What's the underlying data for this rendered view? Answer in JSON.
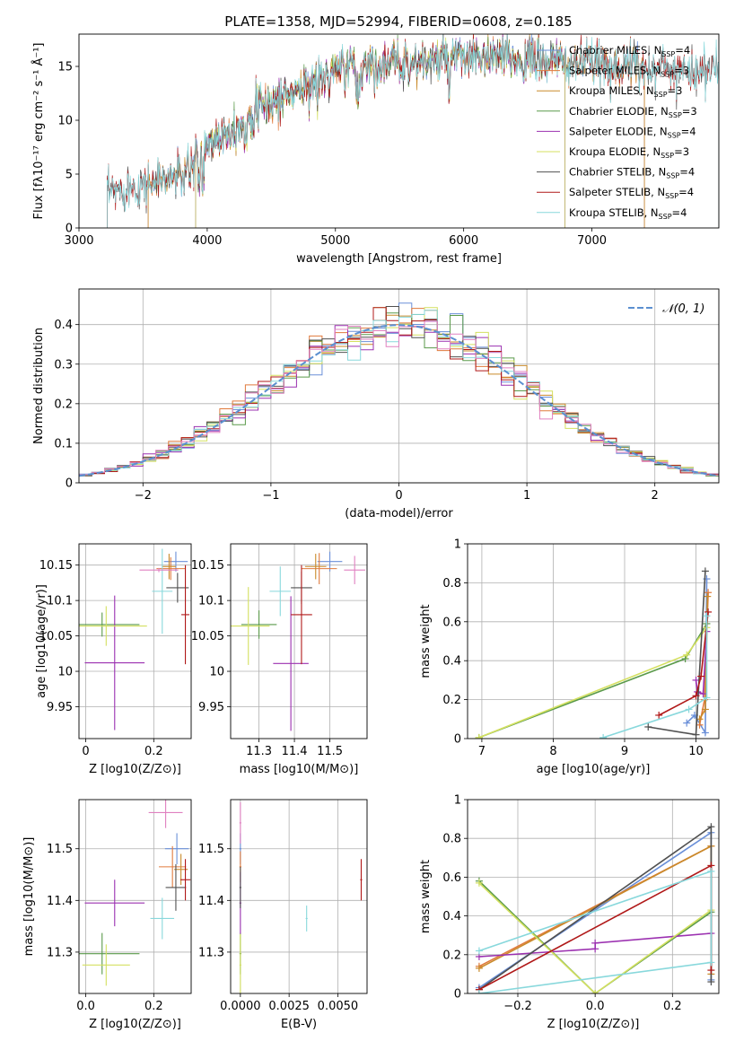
{
  "title": "PLATE=1358, MJD=52994, FIBERID=0608, z=0.185",
  "colors": {
    "Chabrier MILES": "#6a8fd8",
    "Salpeter MILES": "#e07a3c",
    "Kroupa MILES": "#c98a2a",
    "Chabrier ELODIE": "#5a9a4a",
    "Salpeter ELODIE": "#9b30b0",
    "Kroupa ELODIE": "#d4e060",
    "Chabrier STELIB": "#505050",
    "Salpeter STELIB": "#b01818",
    "Kroupa STELIB": "#88d8dc",
    "Pink": "#e080c0",
    "Gauss": "#5b8fd0"
  },
  "chart_data": [
    {
      "id": "spectrum",
      "type": "line",
      "title": "PLATE=1358, MJD=52994, FIBERID=0608, z=0.185",
      "xlabel": "wavelength [Angstrom, rest frame]",
      "ylabel": "Flux [fλ10⁻¹⁷ erg cm⁻² s⁻¹ Å⁻¹]",
      "xlim": [
        3000,
        7990
      ],
      "ylim": [
        0,
        18
      ],
      "xticks": [
        3000,
        4000,
        5000,
        6000,
        7000
      ],
      "yticks": [
        0,
        5,
        10,
        15
      ],
      "legend_position": "top-right",
      "series": [
        {
          "name": "Chabrier MILES, N_SSP=4",
          "model": "Chabrier MILES",
          "xmin": 3540,
          "xmax": 7410
        },
        {
          "name": "Salpeter MILES, N_SSP=3",
          "model": "Salpeter MILES",
          "xmin": 3540,
          "xmax": 7410
        },
        {
          "name": "Kroupa MILES, N_SSP=3",
          "model": "Kroupa MILES",
          "xmin": 3540,
          "xmax": 7410
        },
        {
          "name": "Chabrier ELODIE, N_SSP=3",
          "model": "Chabrier ELODIE",
          "xmin": 3910,
          "xmax": 6790
        },
        {
          "name": "Salpeter ELODIE, N_SSP=4",
          "model": "Salpeter ELODIE",
          "xmin": 3910,
          "xmax": 6790
        },
        {
          "name": "Kroupa ELODIE, N_SSP=3",
          "model": "Kroupa ELODIE",
          "xmin": 3910,
          "xmax": 6790
        },
        {
          "name": "Chabrier STELIB, N_SSP=4",
          "model": "Chabrier STELIB",
          "xmin": 3220,
          "xmax": 7990
        },
        {
          "name": "Salpeter STELIB, N_SSP=4",
          "model": "Salpeter STELIB",
          "xmin": 3220,
          "xmax": 7990
        },
        {
          "name": "Kroupa STELIB, N_SSP=4",
          "model": "Kroupa STELIB",
          "xmin": 3220,
          "xmax": 7990
        }
      ]
    },
    {
      "id": "residuals",
      "type": "line",
      "xlabel": "(data-model)/error",
      "ylabel": "Normed distribution",
      "xlim": [
        -2.5,
        2.5
      ],
      "ylim": [
        0,
        0.49
      ],
      "xticks": [
        -2,
        -1,
        0,
        1,
        2
      ],
      "yticks": [
        0.0,
        0.1,
        0.2,
        0.3,
        0.4
      ],
      "grid": true,
      "legend_position": "top-right",
      "reference": {
        "name": "N(0,1)",
        "mean": 0,
        "sigma": 1
      },
      "bin_width": 0.1
    },
    {
      "id": "age_vs_Z",
      "type": "scatter",
      "xlabel": "Z [log10(Z/Z⊙)]",
      "ylabel": "age [log10(age/yr)]",
      "xlim": [
        -0.02,
        0.31
      ],
      "ylim": [
        9.905,
        10.18
      ],
      "xticks": [
        0.0,
        0.2
      ],
      "yticks": [
        9.95,
        10.0,
        10.05,
        10.1,
        10.15
      ],
      "grid": true,
      "points": [
        {
          "model": "Chabrier MILES",
          "x": 0.265,
          "y": 10.155,
          "xerr": 0.035,
          "yerr": 0.014
        },
        {
          "model": "Salpeter MILES",
          "x": 0.25,
          "y": 10.145,
          "xerr": 0.042,
          "yerr": 0.016
        },
        {
          "model": "Kroupa MILES",
          "x": 0.245,
          "y": 10.148,
          "xerr": 0.02,
          "yerr": 0.018
        },
        {
          "model": "Chabrier ELODIE",
          "x": 0.048,
          "y": 10.066,
          "xerr": 0.11,
          "yerr": 0.017
        },
        {
          "model": "Salpeter ELODIE",
          "x": 0.085,
          "y": 10.012,
          "xerr": 0.088,
          "yerr": 0.095
        },
        {
          "model": "Kroupa ELODIE",
          "x": 0.06,
          "y": 10.064,
          "xerr": 0.12,
          "yerr": 0.028
        },
        {
          "model": "Chabrier STELIB",
          "x": 0.27,
          "y": 10.118,
          "xerr": 0.033,
          "yerr": 0.021
        },
        {
          "model": "Salpeter STELIB",
          "x": 0.293,
          "y": 10.08,
          "xerr": 0.012,
          "yerr": 0.07
        },
        {
          "model": "Kroupa STELIB",
          "x": 0.225,
          "y": 10.113,
          "xerr": 0.03,
          "yerr": 0.06
        },
        {
          "model": "Pink",
          "x": 0.215,
          "y": 10.143,
          "xerr": 0.057,
          "yerr": 0.003
        }
      ]
    },
    {
      "id": "age_vs_mass",
      "type": "scatter",
      "xlabel": "mass [log10(M/M⊙)]",
      "xlim": [
        11.22,
        11.605
      ],
      "ylim": [
        9.905,
        10.18
      ],
      "xticks": [
        11.3,
        11.4,
        11.5
      ],
      "xticklabels": [
        "11.3",
        "11.4",
        "11.5"
      ],
      "yticks": [
        9.95,
        10.0,
        10.05,
        10.1,
        10.15
      ],
      "grid": true,
      "points": [
        {
          "model": "Chabrier MILES",
          "x": 11.5,
          "y": 10.155,
          "xerr": 0.035,
          "yerr": 0.014
        },
        {
          "model": "Salpeter MILES",
          "x": 11.47,
          "y": 10.145,
          "xerr": 0.05,
          "yerr": 0.022
        },
        {
          "model": "Kroupa MILES",
          "x": 11.46,
          "y": 10.148,
          "xerr": 0.03,
          "yerr": 0.018
        },
        {
          "model": "Chabrier ELODIE",
          "x": 11.3,
          "y": 10.066,
          "xerr": 0.05,
          "yerr": 0.02
        },
        {
          "model": "Salpeter ELODIE",
          "x": 11.39,
          "y": 10.011,
          "xerr": 0.05,
          "yerr": 0.095
        },
        {
          "model": "Kroupa ELODIE",
          "x": 11.27,
          "y": 10.064,
          "xerr": 0.06,
          "yerr": 0.055
        },
        {
          "model": "Chabrier STELIB",
          "x": 11.42,
          "y": 10.118,
          "xerr": 0.03,
          "yerr": 0.023
        },
        {
          "model": "Salpeter STELIB",
          "x": 11.42,
          "y": 10.08,
          "xerr": 0.03,
          "yerr": 0.07
        },
        {
          "model": "Kroupa STELIB",
          "x": 11.36,
          "y": 10.113,
          "xerr": 0.03,
          "yerr": 0.035
        },
        {
          "model": "Pink",
          "x": 11.57,
          "y": 10.143,
          "xerr": 0.03,
          "yerr": 0.02
        }
      ]
    },
    {
      "id": "weight_vs_age",
      "type": "line",
      "xlabel": "age [log10(age/yr)]",
      "ylabel": "mass weight",
      "xlim": [
        6.8,
        10.32
      ],
      "ylim": [
        0,
        1
      ],
      "xticks": [
        7,
        8,
        9,
        10
      ],
      "yticks": [
        0.0,
        0.2,
        0.4,
        0.6,
        0.8,
        1.0
      ],
      "grid": true,
      "series": [
        {
          "model": "Chabrier MILES",
          "points": [
            [
              9.87,
              0.08
            ],
            [
              9.98,
              0.12
            ],
            [
              10.13,
              0.03
            ],
            [
              10.15,
              0.82
            ]
          ]
        },
        {
          "model": "Salpeter MILES",
          "points": [
            [
              10.05,
              0.07
            ],
            [
              10.12,
              0.2
            ],
            [
              10.17,
              0.75
            ]
          ]
        },
        {
          "model": "Kroupa MILES",
          "points": [
            [
              10.05,
              0.1
            ],
            [
              10.13,
              0.15
            ],
            [
              10.16,
              0.73
            ]
          ]
        },
        {
          "model": "Chabrier ELODIE",
          "points": [
            [
              6.96,
              0.005
            ],
            [
              9.85,
              0.41
            ],
            [
              10.15,
              0.59
            ]
          ]
        },
        {
          "model": "Salpeter ELODIE",
          "points": [
            [
              10.0,
              0.3
            ],
            [
              10.02,
              0.24
            ],
            [
              10.1,
              0.23
            ],
            [
              10.15,
              0.55
            ]
          ]
        },
        {
          "model": "Kroupa ELODIE",
          "points": [
            [
              6.96,
              0.005
            ],
            [
              9.87,
              0.43
            ],
            [
              10.15,
              0.57
            ]
          ]
        },
        {
          "model": "Chabrier STELIB",
          "points": [
            [
              9.33,
              0.06
            ],
            [
              10.0,
              0.02
            ],
            [
              10.13,
              0.86
            ]
          ]
        },
        {
          "model": "Salpeter STELIB",
          "points": [
            [
              9.48,
              0.12
            ],
            [
              10.0,
              0.22
            ],
            [
              10.07,
              0.32
            ],
            [
              10.17,
              0.65
            ]
          ]
        },
        {
          "model": "Kroupa STELIB",
          "points": [
            [
              8.7,
              0.005
            ],
            [
              9.9,
              0.15
            ],
            [
              10.15,
              0.21
            ],
            [
              10.15,
              0.63
            ]
          ]
        }
      ]
    },
    {
      "id": "mass_vs_Z",
      "type": "scatter",
      "xlabel": "Z [log10(Z/Z⊙)]",
      "ylabel": "mass [log10(M/M⊙)]",
      "xlim": [
        -0.02,
        0.31
      ],
      "ylim": [
        11.22,
        11.595
      ],
      "xticks": [
        0.0,
        0.2
      ],
      "yticks": [
        11.3,
        11.4,
        11.5
      ],
      "xticklabels": [
        "0.0",
        "0.2"
      ],
      "yticklabels": [
        "11.3",
        "11.4",
        "11.5"
      ],
      "grid": true,
      "points": [
        {
          "model": "Chabrier MILES",
          "x": 0.268,
          "y": 11.5,
          "xerr": 0.035,
          "yerr": 0.03
        },
        {
          "model": "Salpeter MILES",
          "x": 0.255,
          "y": 11.465,
          "xerr": 0.04,
          "yerr": 0.04
        },
        {
          "model": "Kroupa MILES",
          "x": 0.28,
          "y": 11.46,
          "xerr": 0.02,
          "yerr": 0.03
        },
        {
          "model": "Chabrier ELODIE",
          "x": 0.048,
          "y": 11.297,
          "xerr": 0.11,
          "yerr": 0.04
        },
        {
          "model": "Salpeter ELODIE",
          "x": 0.085,
          "y": 11.395,
          "xerr": 0.088,
          "yerr": 0.045
        },
        {
          "model": "Kroupa ELODIE",
          "x": 0.06,
          "y": 11.275,
          "xerr": 0.07,
          "yerr": 0.04
        },
        {
          "model": "Chabrier STELIB",
          "x": 0.265,
          "y": 11.425,
          "xerr": 0.03,
          "yerr": 0.045
        },
        {
          "model": "Salpeter STELIB",
          "x": 0.293,
          "y": 11.44,
          "xerr": 0.015,
          "yerr": 0.04
        },
        {
          "model": "Kroupa STELIB",
          "x": 0.225,
          "y": 11.365,
          "xerr": 0.035,
          "yerr": 0.04
        },
        {
          "model": "Pink",
          "x": 0.235,
          "y": 11.57,
          "xerr": 0.05,
          "yerr": 0.03
        }
      ]
    },
    {
      "id": "mass_vs_ebv",
      "type": "scatter",
      "xlabel": "E(B-V)",
      "xlim": [
        -0.0005,
        0.0065
      ],
      "ylim": [
        11.22,
        11.595
      ],
      "xticks": [
        0.0,
        0.0025,
        0.005
      ],
      "xticklabels": [
        "0.0000",
        "0.0025",
        "0.0050"
      ],
      "yticks": [
        11.3,
        11.4,
        11.5
      ],
      "yticklabels": [
        "11.3",
        "11.4",
        "11.5"
      ],
      "grid": true,
      "points": [
        {
          "model": "Chabrier MILES",
          "x": 0.0,
          "y": 11.5,
          "xerr": 5e-05,
          "yerr": 0.03
        },
        {
          "model": "Salpeter MILES",
          "x": 0.0,
          "y": 11.465,
          "xerr": 5e-05,
          "yerr": 0.03
        },
        {
          "model": "Chabrier ELODIE",
          "x": 0.0,
          "y": 11.297,
          "xerr": 5e-05,
          "yerr": 0.04
        },
        {
          "model": "Salpeter ELODIE",
          "x": 0.0,
          "y": 11.395,
          "xerr": 5e-05,
          "yerr": 0.06
        },
        {
          "model": "Kroupa ELODIE",
          "x": 0.0,
          "y": 11.275,
          "xerr": 5e-05,
          "yerr": 0.06
        },
        {
          "model": "Chabrier STELIB",
          "x": 0.0,
          "y": 11.425,
          "xerr": 5e-05,
          "yerr": 0.04
        },
        {
          "model": "Salpeter STELIB",
          "x": 0.0062,
          "y": 11.44,
          "xerr": 5e-05,
          "yerr": 0.04
        },
        {
          "model": "Kroupa STELIB",
          "x": 0.0034,
          "y": 11.365,
          "xerr": 5e-05,
          "yerr": 0.025
        },
        {
          "model": "Pink",
          "x": 0.0,
          "y": 11.55,
          "xerr": 5e-05,
          "yerr": 0.04
        }
      ]
    },
    {
      "id": "weight_vs_Z",
      "type": "line",
      "xlabel": "Z [log10(Z/Z⊙)]",
      "ylabel": "mass weight",
      "xlim": [
        -0.33,
        0.32
      ],
      "ylim": [
        0,
        1
      ],
      "xticks": [
        -0.2,
        0.0,
        0.2
      ],
      "xticklabels": [
        "−0.2",
        "0.0",
        "0.2"
      ],
      "yticks": [
        0.0,
        0.2,
        0.4,
        0.6,
        0.8,
        1.0
      ],
      "grid": true,
      "series": [
        {
          "model": "Chabrier MILES",
          "points": [
            [
              -0.3,
              0.03
            ],
            [
              0.3,
              0.83
            ],
            [
              0.3,
              0.07
            ]
          ]
        },
        {
          "model": "Salpeter MILES",
          "points": [
            [
              -0.3,
              0.14
            ],
            [
              0.3,
              0.76
            ]
          ]
        },
        {
          "model": "Kroupa MILES",
          "points": [
            [
              -0.3,
              0.13
            ],
            [
              0.3,
              0.76
            ],
            [
              0.3,
              0.1
            ]
          ]
        },
        {
          "model": "Chabrier ELODIE",
          "points": [
            [
              -0.3,
              0.58
            ],
            [
              0.0,
              0.0
            ],
            [
              0.3,
              0.42
            ]
          ]
        },
        {
          "model": "Salpeter ELODIE",
          "points": [
            [
              -0.3,
              0.19
            ],
            [
              0.0,
              0.23
            ],
            [
              0.0,
              0.26
            ],
            [
              0.3,
              0.31
            ]
          ]
        },
        {
          "model": "Kroupa ELODIE",
          "points": [
            [
              -0.3,
              0.57
            ],
            [
              0.0,
              0.0
            ],
            [
              0.3,
              0.43
            ]
          ]
        },
        {
          "model": "Chabrier STELIB",
          "points": [
            [
              -0.3,
              0.02
            ],
            [
              0.3,
              0.86
            ],
            [
              0.3,
              0.06
            ]
          ]
        },
        {
          "model": "Salpeter STELIB",
          "points": [
            [
              -0.3,
              0.02
            ],
            [
              0.3,
              0.66
            ],
            [
              0.3,
              0.12
            ]
          ]
        },
        {
          "model": "Kroupa STELIB",
          "points": [
            [
              -0.3,
              0.0
            ],
            [
              0.3,
              0.16
            ],
            [
              0.3,
              0.63
            ],
            [
              -0.3,
              0.22
            ]
          ]
        }
      ]
    }
  ]
}
